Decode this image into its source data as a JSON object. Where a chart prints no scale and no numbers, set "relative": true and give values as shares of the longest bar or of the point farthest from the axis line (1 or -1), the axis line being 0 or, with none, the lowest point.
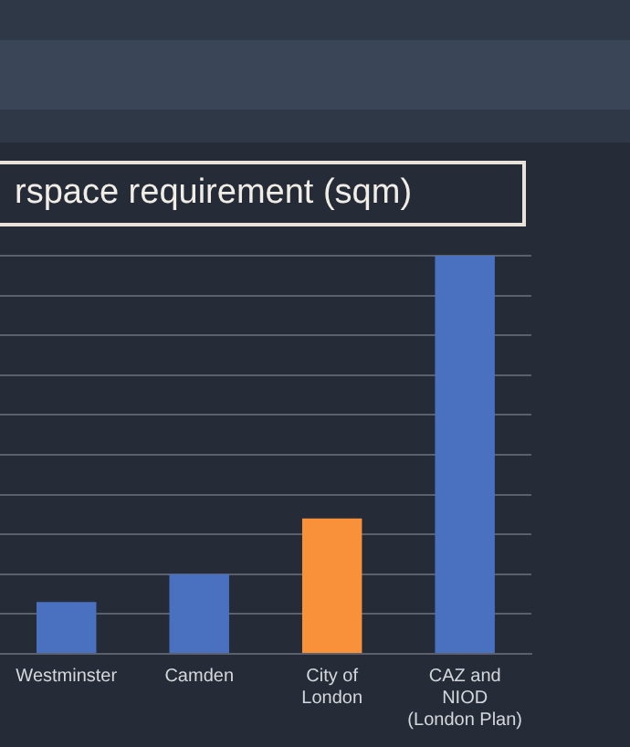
{
  "chart_data": {
    "type": "bar",
    "title": "rspace requirement (sqm)",
    "categories": [
      "Westminster",
      "Camden",
      "City of\nLondon",
      "CAZ and\nNIOD\n(London Plan)"
    ],
    "values": [
      0.13,
      0.2,
      0.34,
      1
    ],
    "colors": [
      "#4a70c0",
      "#4a70c0",
      "#f8913a",
      "#4a70c0"
    ],
    "relative": true,
    "grid": "y",
    "legend": false
  }
}
